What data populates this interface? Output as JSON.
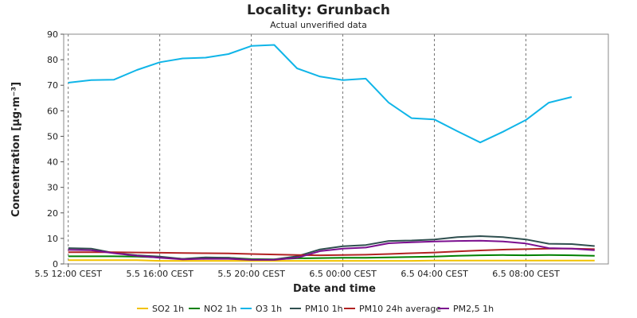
{
  "chart_data": {
    "type": "line",
    "title": "Locality: Grunbach",
    "subtitle": "Actual unverified data",
    "xlabel": "Date and time",
    "ylabel": "Concentration [µg·m⁻³]",
    "ylim": [
      0,
      90
    ],
    "yticks": [
      "0",
      "10",
      "20",
      "30",
      "40",
      "50",
      "60",
      "70",
      "80",
      "90"
    ],
    "x_hours_start_label": "5.5 12:00 CEST",
    "xticks": [
      {
        "hour": 0,
        "label": "5.5 12:00 CEST"
      },
      {
        "hour": 4,
        "label": "5.5 16:00 CEST"
      },
      {
        "hour": 8,
        "label": "5.5 20:00 CEST"
      },
      {
        "hour": 12,
        "label": "6.5 00:00 CEST"
      },
      {
        "hour": 16,
        "label": "6.5 04:00 CEST"
      },
      {
        "hour": 20,
        "label": "6.5 08:00 CEST"
      }
    ],
    "xlim": [
      -0.2,
      23.6
    ],
    "grid": "vertical-dashed",
    "legend": "bottom",
    "series": [
      {
        "name": "SO2 1h",
        "color": "#f2c200",
        "values": [
          1.5,
          1.5,
          1.5,
          1.5,
          1.2,
          1.2,
          1.2,
          1.2,
          1.2,
          1.2,
          1.2,
          1.2,
          1.2,
          1.2,
          1.2,
          1.2,
          1.3,
          1.3,
          1.3,
          1.3,
          1.3,
          1.3,
          1.3,
          1.3
        ]
      },
      {
        "name": "NO2 1h",
        "color": "#008000",
        "values": [
          3.0,
          3.0,
          3.0,
          2.9,
          2.6,
          2.0,
          2.3,
          2.4,
          1.9,
          1.8,
          2.2,
          2.3,
          2.4,
          2.4,
          2.6,
          2.7,
          2.9,
          3.2,
          3.4,
          3.5,
          3.4,
          3.5,
          3.4,
          3.2
        ]
      },
      {
        "name": "O3 1h",
        "color": "#10b5e8",
        "values": [
          71,
          72,
          72.2,
          76,
          79,
          80.5,
          80.8,
          82.2,
          85.4,
          85.8,
          76.6,
          73.4,
          72,
          72.6,
          63.2,
          57.1,
          56.6,
          52,
          47.6,
          51.8,
          56.4,
          63.2,
          65.4,
          null
        ]
      },
      {
        "name": "PM10 1h",
        "color": "#2f4f4f",
        "values": [
          6.2,
          6.0,
          4.3,
          3.4,
          2.9,
          2.0,
          2.6,
          2.4,
          1.7,
          1.8,
          3.0,
          5.7,
          6.9,
          7.4,
          9.0,
          9.2,
          9.6,
          10.5,
          10.9,
          10.5,
          9.6,
          7.9,
          7.8,
          7.0
        ]
      },
      {
        "name": "PM10 24h average",
        "color": "#b22222",
        "values": [
          4.6,
          4.6,
          4.6,
          4.5,
          4.4,
          4.3,
          4.2,
          4.1,
          3.9,
          3.7,
          3.5,
          3.4,
          3.5,
          3.6,
          3.9,
          4.2,
          4.5,
          4.9,
          5.3,
          5.6,
          5.8,
          6.0,
          6.0,
          5.8
        ]
      },
      {
        "name": "PM2,5 1h",
        "color": "#7b0f8f",
        "values": [
          5.5,
          5.4,
          4.2,
          3.2,
          2.4,
          1.8,
          2.0,
          2.0,
          1.6,
          1.6,
          2.4,
          5.0,
          6.0,
          6.4,
          8.1,
          8.5,
          8.8,
          9.0,
          9.1,
          8.8,
          8.0,
          6.2,
          6.0,
          5.4
        ]
      }
    ]
  }
}
